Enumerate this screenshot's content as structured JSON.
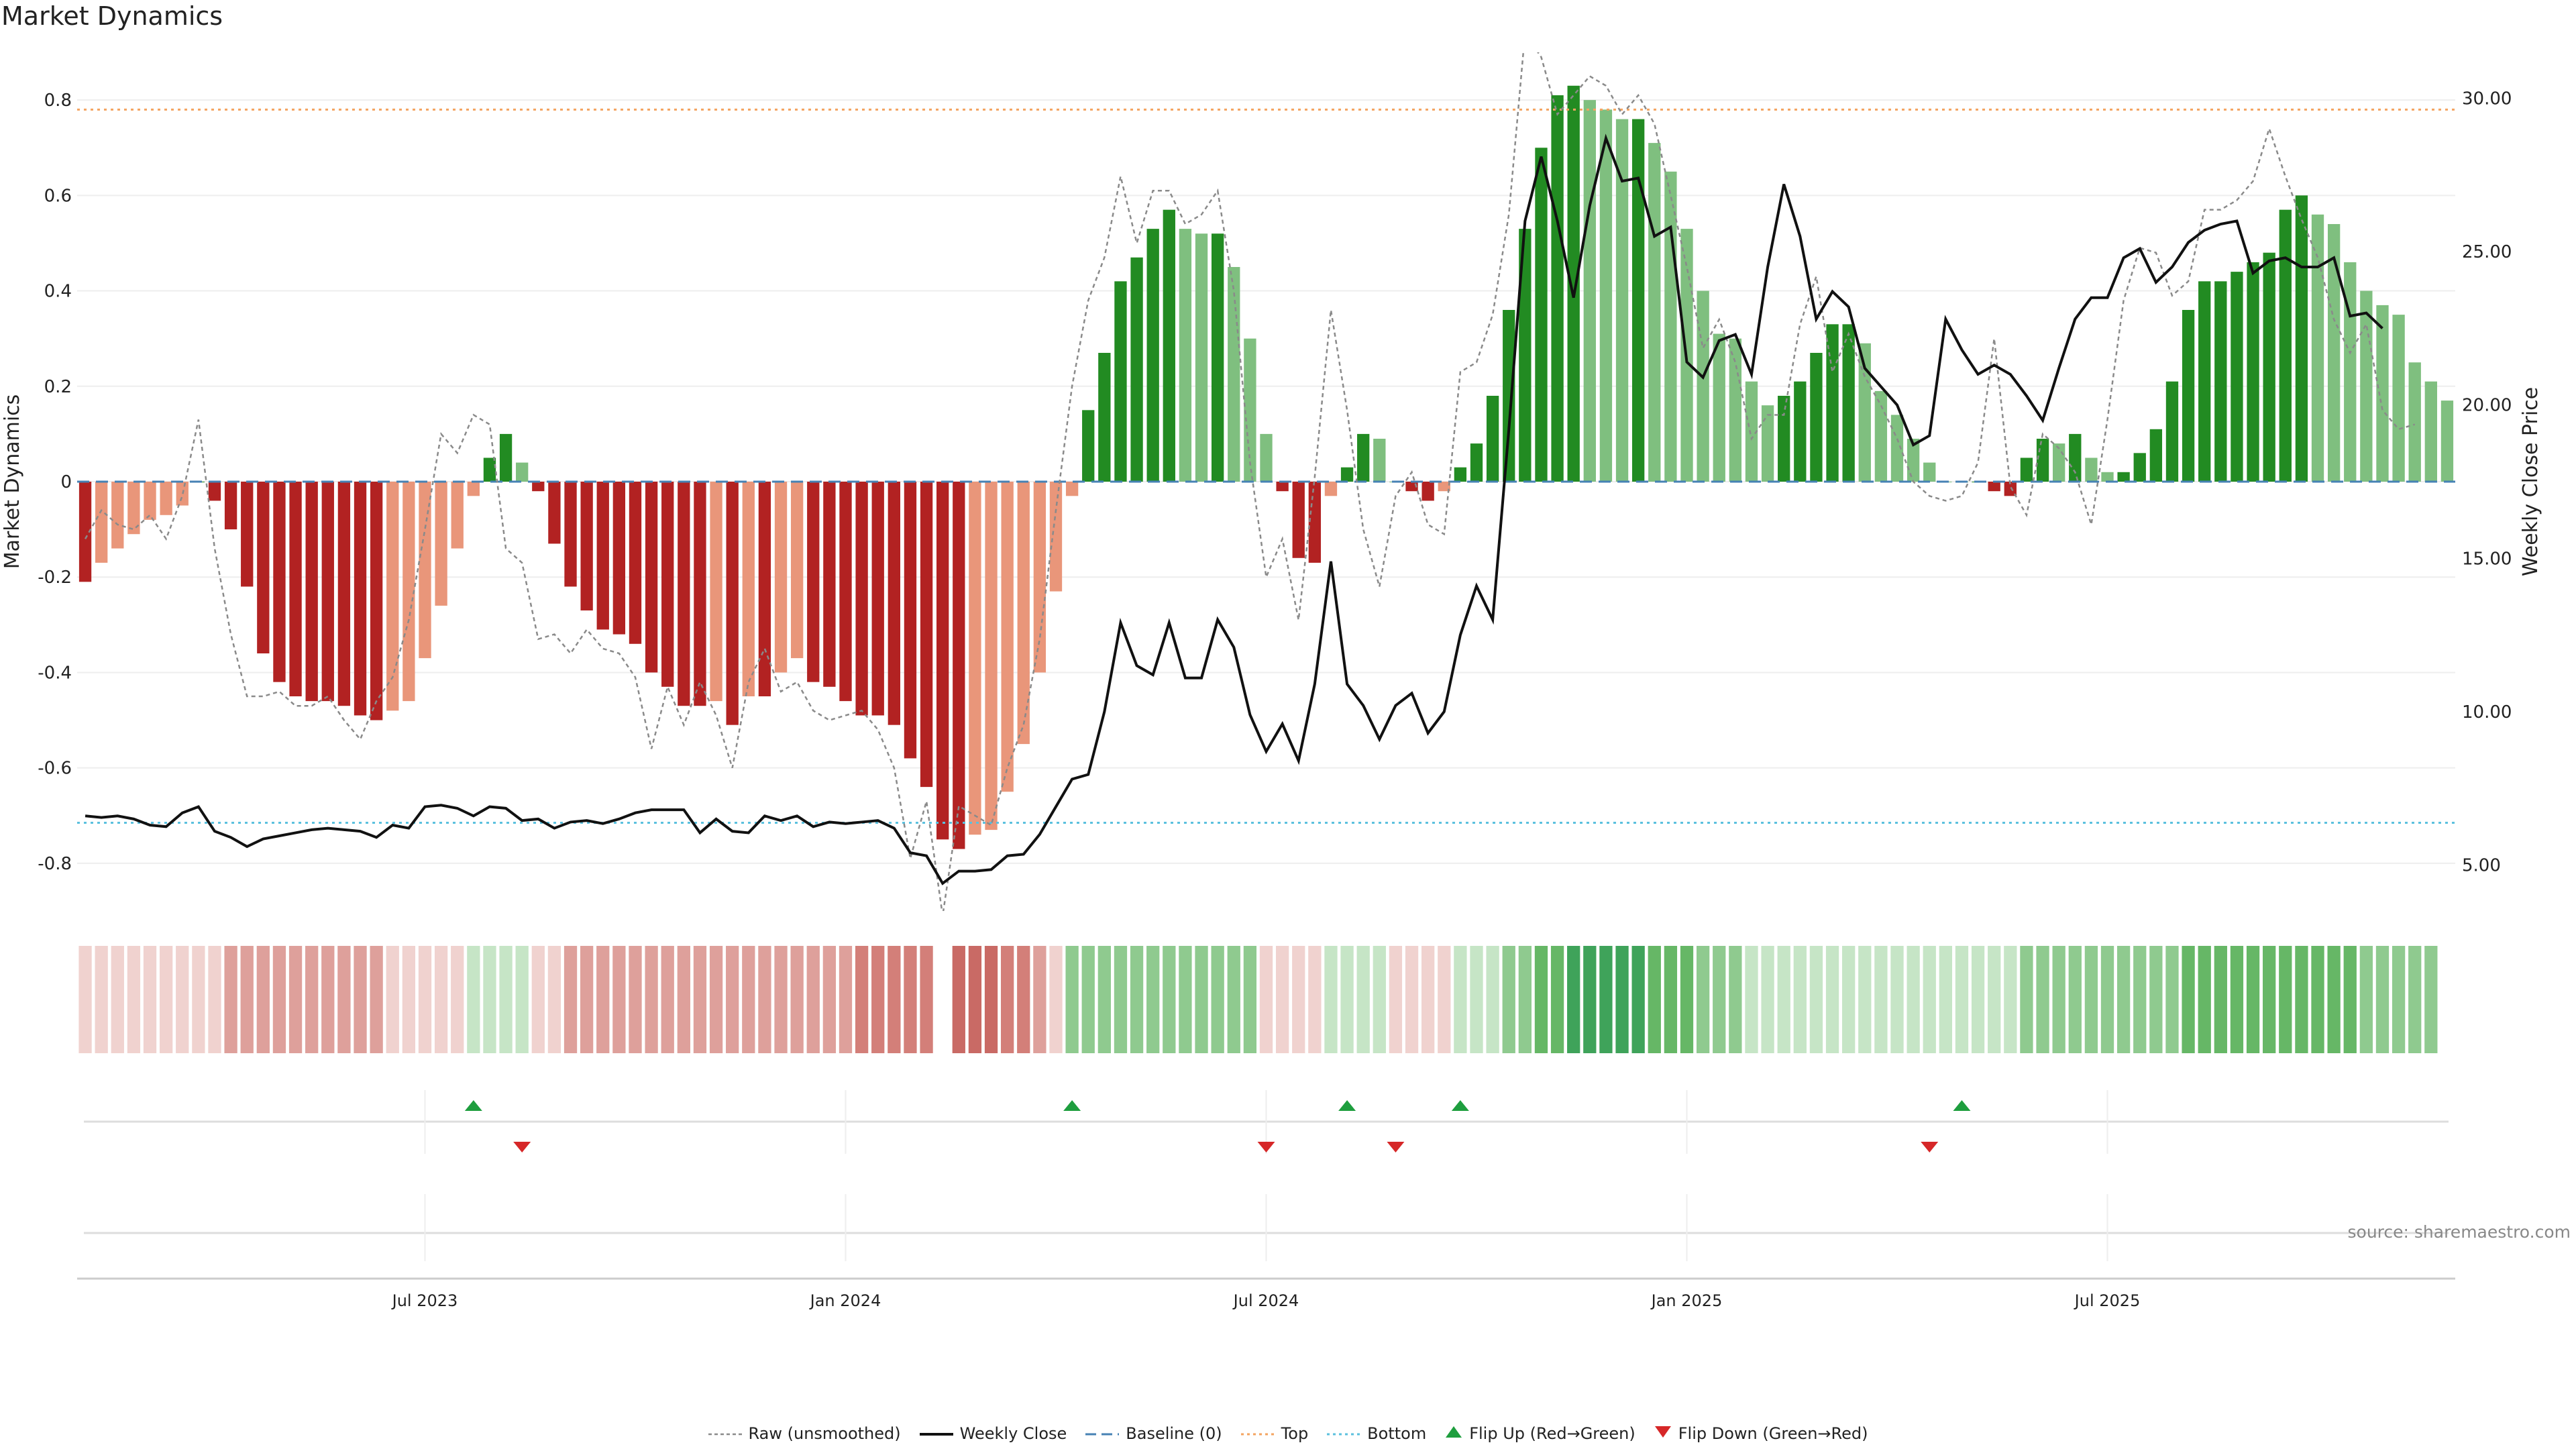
{
  "title": "Market Dynamics",
  "source": "source: sharemaestro.com",
  "colors": {
    "strong_green": "#228B22",
    "light_green": "#7fbf7f",
    "strong_red": "#b22222",
    "light_red": "#e9967a",
    "close_line": "#111111",
    "raw_line": "#8a8a8a",
    "baseline": "#4682b4",
    "top": "#f4a460",
    "bottom": "#5bc0de",
    "flip_up": "#1e9e3e",
    "flip_down": "#d62728"
  },
  "legend": [
    {
      "key": "raw",
      "label": "Raw (unsmoothed)"
    },
    {
      "key": "close",
      "label": "Weekly Close"
    },
    {
      "key": "baseline",
      "label": "Baseline (0)"
    },
    {
      "key": "top",
      "label": "Top"
    },
    {
      "key": "bottom",
      "label": "Bottom"
    },
    {
      "key": "flip_up",
      "label": "Flip Up (Red→Green)"
    },
    {
      "key": "flip_down",
      "label": "Flip Down (Green→Red)"
    }
  ],
  "chart_data": {
    "type": "bar",
    "title": "Market Dynamics",
    "ylabel": "Market Dynamics",
    "y2label": "Weekly Close Price",
    "ylim": [
      -0.9,
      0.9
    ],
    "y2lim": [
      3.5,
      31.5
    ],
    "yticks": [
      "-0.8",
      "-0.6",
      "-0.4",
      "-0.2",
      "0",
      "0.2",
      "0.4",
      "0.6",
      "0.8"
    ],
    "y2ticks": [
      "5.00",
      "10.00",
      "15.00",
      "20.00",
      "25.00",
      "30.00"
    ],
    "xticks": [
      "Jul 2023",
      "Jan 2024",
      "Jul 2024",
      "Jan 2025",
      "Jul 2025"
    ],
    "xtick_week_index": [
      21,
      47,
      73,
      99,
      125
    ],
    "top_level": 0.78,
    "bottom_level": -0.715,
    "baseline": 0,
    "series": [
      {
        "name": "Market Dynamics",
        "values": [
          -0.21,
          -0.17,
          -0.14,
          -0.11,
          -0.08,
          -0.07,
          -0.05,
          0,
          -0.04,
          -0.1,
          -0.22,
          -0.36,
          -0.42,
          -0.45,
          -0.46,
          -0.46,
          -0.47,
          -0.49,
          -0.5,
          -0.48,
          -0.46,
          -0.37,
          -0.26,
          -0.14,
          -0.03,
          0.05,
          0.1,
          0.04,
          -0.02,
          -0.13,
          -0.22,
          -0.27,
          -0.31,
          -0.32,
          -0.34,
          -0.4,
          -0.43,
          -0.47,
          -0.47,
          -0.46,
          -0.51,
          -0.45,
          -0.45,
          -0.4,
          -0.37,
          -0.42,
          -0.43,
          -0.46,
          -0.49,
          -0.49,
          -0.51,
          -0.58,
          -0.64,
          -0.75,
          -0.77,
          -0.74,
          -0.73,
          -0.65,
          -0.55,
          -0.4,
          -0.23,
          -0.03,
          0.15,
          0.27,
          0.42,
          0.47,
          0.53,
          0.57,
          0.53,
          0.52,
          0.52,
          0.45,
          0.3,
          0.1,
          -0.02,
          -0.16,
          -0.17,
          -0.03,
          0.03,
          0.1,
          0.09,
          0,
          -0.02,
          -0.04,
          -0.02,
          0.03,
          0.08,
          0.18,
          0.36,
          0.53,
          0.7,
          0.81,
          0.83,
          0.8,
          0.78,
          0.76,
          0.76,
          0.71,
          0.65,
          0.53,
          0.4,
          0.31,
          0.3,
          0.21,
          0.16,
          0.18,
          0.21,
          0.27,
          0.33,
          0.33,
          0.29,
          0.19,
          0.14,
          0.09,
          0.04,
          0,
          0,
          0,
          -0.02,
          -0.03,
          0.05,
          0.09,
          0.08,
          0.1,
          0.05,
          0.02,
          0.02,
          0.06,
          0.11,
          0.21,
          0.36,
          0.42,
          0.42,
          0.44,
          0.46,
          0.48,
          0.57,
          0.6,
          0.56,
          0.54,
          0.46,
          0.4,
          0.37,
          0.35,
          0.25,
          0.21,
          0.17
        ]
      },
      {
        "name": "Weekly Close",
        "values": [
          6.6,
          6.55,
          6.6,
          6.5,
          6.3,
          6.25,
          6.7,
          6.9,
          6.1,
          5.9,
          5.6,
          5.85,
          5.95,
          6.05,
          6.15,
          6.2,
          6.15,
          6.1,
          5.9,
          6.3,
          6.2,
          6.9,
          6.95,
          6.85,
          6.6,
          6.9,
          6.85,
          6.45,
          6.5,
          6.2,
          6.4,
          6.45,
          6.35,
          6.5,
          6.7,
          6.8,
          6.8,
          6.8,
          6.05,
          6.5,
          6.1,
          6.05,
          6.6,
          6.45,
          6.6,
          6.25,
          6.4,
          6.35,
          6.4,
          6.45,
          6.2,
          5.4,
          5.3,
          4.4,
          4.8,
          4.8,
          4.85,
          5.3,
          5.35,
          6.0,
          6.9,
          7.8,
          7.95,
          10.0,
          12.9,
          11.5,
          11.2,
          12.9,
          11.1,
          11.1,
          13.0,
          12.1,
          9.9,
          8.7,
          9.6,
          8.4,
          10.9,
          14.9,
          10.9,
          10.2,
          9.1,
          10.2,
          10.6,
          9.3,
          10.0,
          12.5,
          14.1,
          13.0,
          19.2,
          26.0,
          28.1,
          26.0,
          23.5,
          26.5,
          28.7,
          27.3,
          27.4,
          25.5,
          25.8,
          21.4,
          20.9,
          22.1,
          22.3,
          21.0,
          24.5,
          27.2,
          25.5,
          22.8,
          23.7,
          23.2,
          21.2,
          20.6,
          20.0,
          18.7,
          19.0,
          22.8,
          21.8,
          21.0,
          21.3,
          21.0,
          20.3,
          19.5,
          21.2,
          22.8,
          23.5,
          23.5,
          24.8,
          25.1,
          24.0,
          24.5,
          25.3,
          25.7,
          25.9,
          26.0,
          24.3,
          24.7,
          24.8,
          24.5,
          24.5,
          24.8,
          22.9,
          23.0,
          22.5
        ]
      },
      {
        "name": "Raw (unsmoothed)",
        "values": [
          -0.12,
          -0.06,
          -0.09,
          -0.1,
          -0.07,
          -0.12,
          -0.03,
          0.13,
          -0.14,
          -0.32,
          -0.45,
          -0.45,
          -0.44,
          -0.47,
          -0.47,
          -0.45,
          -0.5,
          -0.54,
          -0.46,
          -0.41,
          -0.29,
          -0.1,
          0.1,
          0.06,
          0.14,
          0.12,
          -0.14,
          -0.17,
          -0.33,
          -0.32,
          -0.36,
          -0.31,
          -0.35,
          -0.36,
          -0.41,
          -0.56,
          -0.43,
          -0.51,
          -0.42,
          -0.49,
          -0.6,
          -0.42,
          -0.35,
          -0.44,
          -0.42,
          -0.48,
          -0.5,
          -0.49,
          -0.48,
          -0.52,
          -0.6,
          -0.79,
          -0.67,
          -0.91,
          -0.68,
          -0.7,
          -0.72,
          -0.6,
          -0.51,
          -0.33,
          -0.06,
          0.2,
          0.38,
          0.47,
          0.64,
          0.5,
          0.61,
          0.61,
          0.54,
          0.56,
          0.61,
          0.4,
          0.04,
          -0.2,
          -0.12,
          -0.29,
          0.01,
          0.36,
          0.15,
          -0.1,
          -0.22,
          -0.03,
          0.02,
          -0.09,
          -0.11,
          0.23,
          0.25,
          0.35,
          0.56,
          0.94,
          0.89,
          0.77,
          0.81,
          0.85,
          0.83,
          0.77,
          0.81,
          0.75,
          0.6,
          0.45,
          0.28,
          0.34,
          0.25,
          0.09,
          0.14,
          0.14,
          0.33,
          0.43,
          0.23,
          0.31,
          0.22,
          0.16,
          0.09,
          0.0,
          -0.03,
          -0.04,
          -0.03,
          0.04,
          0.3,
          -0.01,
          -0.07,
          0.1,
          0.07,
          0.02,
          -0.09,
          0.13,
          0.38,
          0.49,
          0.48,
          0.39,
          0.42,
          0.57,
          0.57,
          0.59,
          0.63,
          0.74,
          0.64,
          0.55,
          0.47,
          0.34,
          0.27,
          0.33,
          0.15,
          0.11,
          0.12
        ]
      }
    ],
    "strength_strip": [
      "r1",
      "r1",
      "r1",
      "r1",
      "r1",
      "r1",
      "r1",
      "r1",
      "r1",
      "r2",
      "r2",
      "r2",
      "r2",
      "r2",
      "r2",
      "r2",
      "r2",
      "r2",
      "r2",
      "r1",
      "r1",
      "r1",
      "r1",
      "r1",
      "g1",
      "g1",
      "g1",
      "g1",
      "r1",
      "r1",
      "r2",
      "r2",
      "r2",
      "r2",
      "r2",
      "r2",
      "r2",
      "r2",
      "r2",
      "r2",
      "r2",
      "r2",
      "r2",
      "r2",
      "r2",
      "r2",
      "r2",
      "r2",
      "r3",
      "r3",
      "r3",
      "r3",
      "r3",
      "",
      "r4",
      "r4",
      "r4",
      "r3",
      "r3",
      "r2",
      "r1",
      "g2",
      "g2",
      "g2",
      "g2",
      "g2",
      "g2",
      "g2",
      "g2",
      "g2",
      "g2",
      "g2",
      "g2",
      "r1",
      "r1",
      "r1",
      "r1",
      "g1",
      "g1",
      "g1",
      "g1",
      "r1",
      "r1",
      "r1",
      "r1",
      "g1",
      "g1",
      "g1",
      "g2",
      "g2",
      "g3",
      "g3",
      "g4",
      "g4",
      "g4",
      "g4",
      "g4",
      "g3",
      "g3",
      "g3",
      "g2",
      "g2",
      "g2",
      "g1",
      "g1",
      "g1",
      "g1",
      "g1",
      "g1",
      "g1",
      "g1",
      "g1",
      "g1",
      "g1",
      "g1",
      "g1",
      "g1",
      "g1",
      "g1",
      "g1",
      "g2",
      "g2",
      "g2",
      "g2",
      "g2",
      "g2",
      "g2",
      "g2",
      "g2",
      "g2",
      "g3",
      "g3",
      "g3",
      "g3",
      "g3",
      "g3",
      "g3",
      "g3",
      "g3",
      "g3",
      "g3",
      "g2",
      "g2",
      "g2",
      "g2",
      "g2"
    ],
    "flip_up_weeks": [
      24,
      61,
      78,
      85,
      116
    ],
    "flip_down_weeks": [
      27,
      73,
      81,
      114
    ]
  }
}
